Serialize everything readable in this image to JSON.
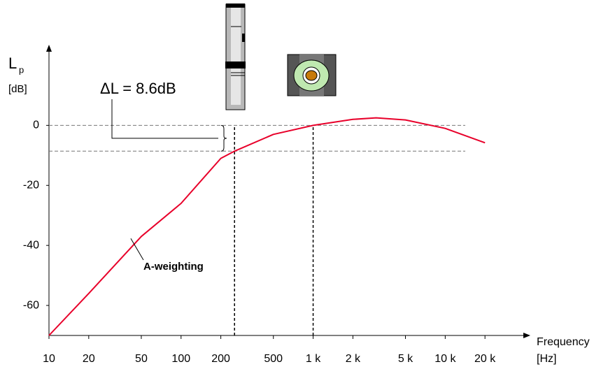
{
  "chart_data": {
    "type": "line",
    "x": [
      10,
      20,
      50,
      100,
      200,
      254,
      500,
      1000,
      2000,
      3000,
      5000,
      10000,
      20000
    ],
    "series": [
      {
        "name": "A-weighting",
        "color": "#e8002a",
        "values": [
          -70,
          -56,
          -37,
          -26,
          -11,
          -8.6,
          -3,
          0,
          2,
          2.5,
          1.8,
          -1,
          -5.8
        ]
      }
    ],
    "xlim": [
      10,
      40000
    ],
    "ylim": [
      -70,
      25
    ],
    "log_x": true,
    "xticks": [
      10,
      20,
      50,
      100,
      200,
      500,
      {
        "value": 1000,
        "label": "1 k"
      },
      {
        "value": 2000,
        "label": "2 k"
      },
      {
        "value": 5000,
        "label": "5 k"
      },
      {
        "value": 10000,
        "label": "10 k"
      },
      {
        "value": 20000,
        "label": "20 k"
      }
    ],
    "yticks": [
      -60,
      -40,
      -20,
      0
    ],
    "xlabel": "Frequency",
    "xunit": "[Hz]",
    "ylabel": "L",
    "ylabel_sub": "p",
    "yunit": "[dB]",
    "reference_lines": {
      "y": [
        0,
        -8.6
      ],
      "x": [
        254,
        1000
      ]
    },
    "annotation": "ΔL = 8.6dB"
  }
}
